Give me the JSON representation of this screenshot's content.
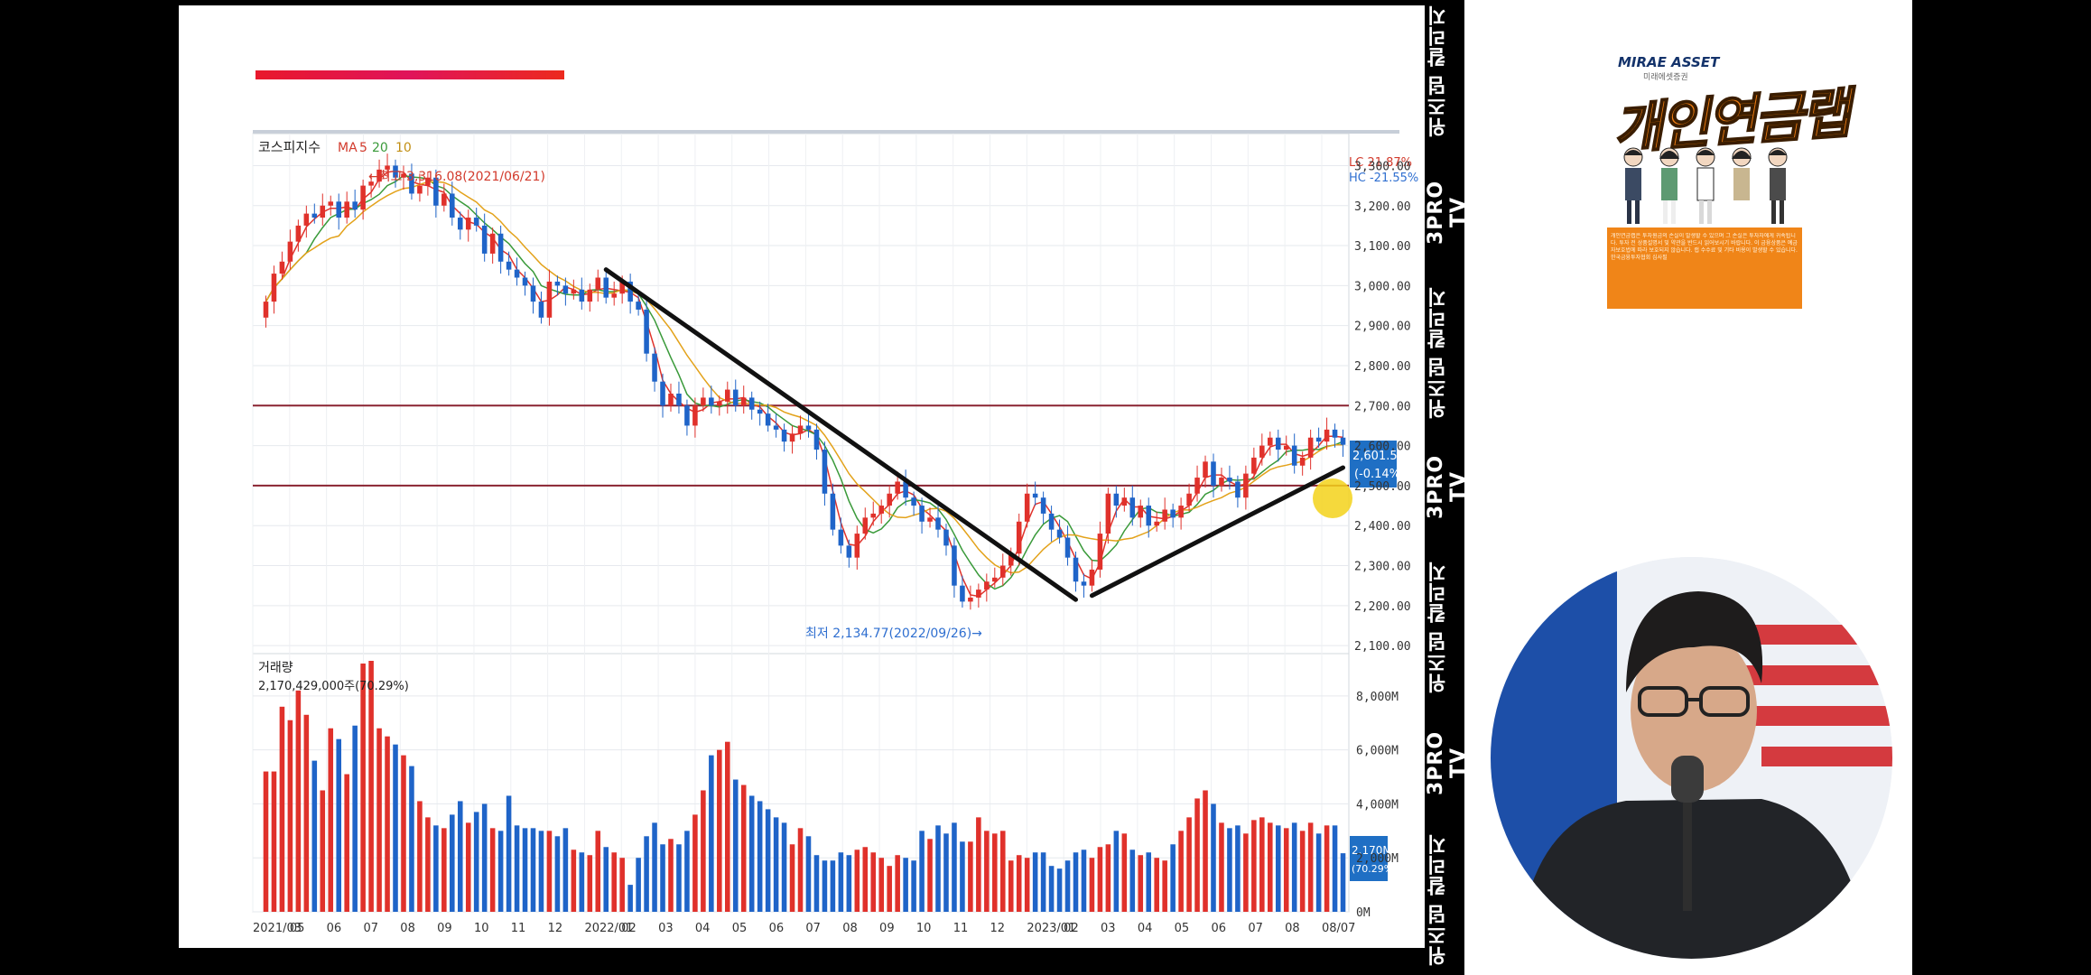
{
  "chart_title": "코스피지수",
  "ma_legend": {
    "prefix": "MA",
    "p1": "5",
    "p2": "20",
    "p3": "10",
    "colors": [
      "#e0322b",
      "#3a9a3a",
      "#e3a21a"
    ]
  },
  "annotations": {
    "high": "←최고 3,316.08(2021/06/21)",
    "low": "최저 2,134.77(2022/09/26)→"
  },
  "price_box": {
    "lc": "LC  21.87%",
    "hc": "HC -21.55%",
    "last": "2,601.56",
    "change": "(-0.14%)"
  },
  "volume_panel": {
    "title": "거래량",
    "value": "2,170,429,000주(70.29%)",
    "box_value": "2.170M",
    "box_pct": "(70.29%)"
  },
  "chart_data": {
    "type": "candlestick",
    "subtype": "weekly candlestick with volume",
    "price_axis": {
      "ticks": [
        "3,300.00",
        "3,200.00",
        "3,100.00",
        "3,000.00",
        "2,900.00",
        "2,800.00",
        "2,700.00",
        "2,600.00",
        "2,500.00",
        "2,400.00",
        "2,300.00",
        "2,200.00",
        "2,100.00"
      ],
      "ylim": [
        2080,
        3380
      ]
    },
    "volume_axis": {
      "ticks": [
        "8,000M",
        "6,000M",
        "4,000M",
        "2,000M",
        "0M"
      ],
      "ylim": [
        0,
        9300
      ]
    },
    "x_ticks": [
      "2021/03",
      "05",
      "06",
      "07",
      "08",
      "09",
      "10",
      "11",
      "12",
      "2022/01",
      "02",
      "03",
      "04",
      "05",
      "06",
      "07",
      "08",
      "09",
      "10",
      "11",
      "12",
      "2023/01",
      "02",
      "03",
      "04",
      "05",
      "06",
      "07",
      "08",
      "08/07"
    ],
    "horizontal_lines": [
      2700,
      2500
    ],
    "high": {
      "value": 3316.08,
      "date": "2021/06/21"
    },
    "low": {
      "value": 2134.77,
      "date": "2022/09/26"
    },
    "last": {
      "value": 2601.56,
      "change_pct": -0.14
    },
    "closes": [
      2960,
      3030,
      3060,
      3110,
      3150,
      3180,
      3170,
      3200,
      3210,
      3170,
      3210,
      3190,
      3250,
      3260,
      3290,
      3300,
      3270,
      3280,
      3230,
      3250,
      3270,
      3200,
      3230,
      3170,
      3140,
      3170,
      3150,
      3080,
      3130,
      3060,
      3040,
      3020,
      3000,
      2960,
      2920,
      3010,
      3000,
      2980,
      2990,
      2960,
      2990,
      3020,
      2970,
      2980,
      3010,
      2960,
      2940,
      2830,
      2760,
      2700,
      2730,
      2700,
      2650,
      2700,
      2720,
      2700,
      2710,
      2740,
      2700,
      2720,
      2690,
      2680,
      2650,
      2640,
      2610,
      2630,
      2650,
      2640,
      2590,
      2480,
      2390,
      2350,
      2320,
      2380,
      2420,
      2430,
      2450,
      2480,
      2510,
      2470,
      2450,
      2410,
      2420,
      2390,
      2350,
      2250,
      2210,
      2220,
      2240,
      2260,
      2270,
      2300,
      2330,
      2410,
      2480,
      2470,
      2430,
      2390,
      2370,
      2320,
      2260,
      2250,
      2290,
      2380,
      2480,
      2450,
      2470,
      2420,
      2450,
      2400,
      2410,
      2440,
      2420,
      2450,
      2480,
      2520,
      2560,
      2500,
      2520,
      2510,
      2470,
      2530,
      2570,
      2600,
      2620,
      2590,
      2600,
      2550,
      2570,
      2620,
      2610,
      2640,
      2620,
      2602
    ],
    "volumes": [
      5200,
      5200,
      7600,
      7100,
      8200,
      7300,
      5600,
      4500,
      6800,
      6400,
      5100,
      6900,
      9200,
      9300,
      6800,
      6500,
      6200,
      5800,
      5400,
      4100,
      3500,
      3200,
      3100,
      3600,
      4100,
      3300,
      3700,
      4000,
      3100,
      3000,
      4300,
      3200,
      3100,
      3100,
      3000,
      3000,
      2800,
      3100,
      2300,
      2200,
      2100,
      3000,
      2400,
      2200,
      2000,
      1000,
      2000,
      2800,
      3300,
      2500,
      2700,
      2500,
      3000,
      3600,
      4500,
      5800,
      6000,
      6300,
      4900,
      4700,
      4300,
      4100,
      3800,
      3500,
      3300,
      2500,
      3100,
      2800,
      2100,
      1900,
      1900,
      2200,
      2100,
      2300,
      2400,
      2200,
      2000,
      1700,
      2100,
      2000,
      1900,
      3000,
      2700,
      3200,
      2900,
      3300,
      2600,
      2600,
      3500,
      3000,
      2900,
      3000,
      1900,
      2100,
      2000,
      2200,
      2200,
      1700,
      1600,
      1900,
      2200,
      2300,
      2000,
      2400,
      2500,
      3000,
      2900,
      2300,
      2100,
      2200,
      2000,
      1900,
      2500,
      3000,
      3500,
      4200,
      4500,
      4000,
      3300,
      3100,
      3200,
      2900,
      3400,
      3500,
      3300,
      3200,
      3100,
      3300,
      3000,
      3300,
      2900,
      3200,
      3200,
      2170
    ]
  },
  "brand_strip": {
    "labels": [
      "위즈덤 칼리지",
      "3PRO TV",
      "위즈덤 칼리지",
      "3PRO TV",
      "위즈덤 칼리지",
      "3PRO TV",
      "위즈덤 칼리지"
    ]
  },
  "ad": {
    "brand": "MIRAE ASSET",
    "brand_sub": "미래에셋증권",
    "title": "개인연금랩",
    "footer": "개인연금랩은 투자원금의 손실이 발생할 수 있으며 그 손실은 투자자에게 귀속됩니다. 투자 전 상품설명서 및 약관을 반드시 읽어보시기 바랍니다. 이 금융상품은 예금자보호법에 따라 보호되지 않습니다. 랩 수수료 및 기타 비용이 발생할 수 있습니다. 한국금융투자협회 심사필"
  }
}
